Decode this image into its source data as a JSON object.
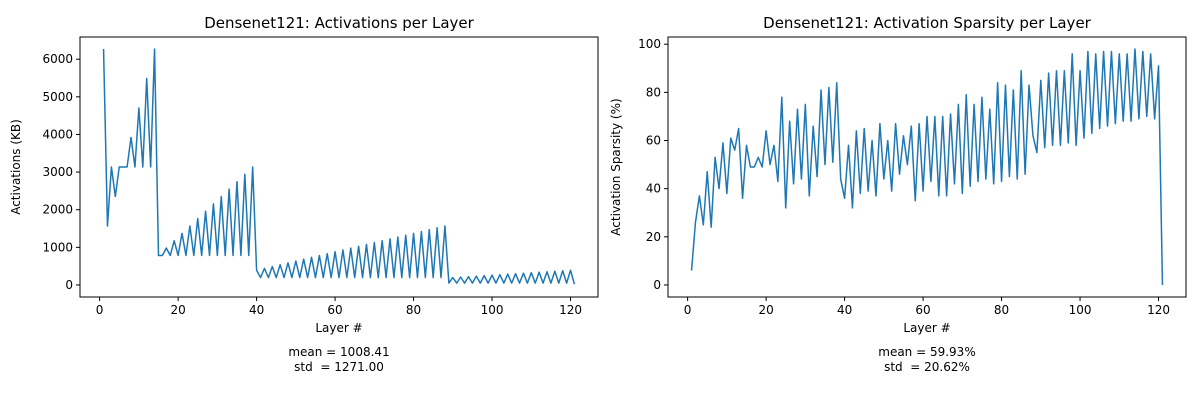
{
  "chart_data": [
    {
      "type": "line",
      "title": "Densenet121: Activations per Layer",
      "xlabel": "Layer #",
      "ylabel": "Activations (KB)",
      "x": [
        1,
        2,
        3,
        4,
        5,
        6,
        7,
        8,
        9,
        10,
        11,
        12,
        13,
        14,
        15,
        16,
        17,
        18,
        19,
        20,
        21,
        22,
        23,
        24,
        25,
        26,
        27,
        28,
        29,
        30,
        31,
        32,
        33,
        34,
        35,
        36,
        37,
        38,
        39,
        40,
        41,
        42,
        43,
        44,
        45,
        46,
        47,
        48,
        49,
        50,
        51,
        52,
        53,
        54,
        55,
        56,
        57,
        58,
        59,
        60,
        61,
        62,
        63,
        64,
        65,
        66,
        67,
        68,
        69,
        70,
        71,
        72,
        73,
        74,
        75,
        76,
        77,
        78,
        79,
        80,
        81,
        82,
        83,
        84,
        85,
        86,
        87,
        88,
        89,
        90,
        91,
        92,
        93,
        94,
        95,
        96,
        97,
        98,
        99,
        100,
        101,
        102,
        103,
        104,
        105,
        106,
        107,
        108,
        109,
        110,
        111,
        112,
        113,
        114,
        115,
        116,
        117,
        118,
        119,
        120,
        121
      ],
      "series": [
        {
          "color": "#1f77b4",
          "values": [
            6272,
            1568,
            3136,
            2352,
            3136,
            3136,
            3136,
            3920,
            3136,
            4704,
            3136,
            5488,
            3136,
            6272,
            784,
            784,
            980,
            784,
            1176,
            784,
            1372,
            784,
            1568,
            784,
            1764,
            784,
            1960,
            784,
            2156,
            784,
            2352,
            784,
            2548,
            784,
            2744,
            784,
            2940,
            784,
            3136,
            392,
            196,
            441,
            196,
            490,
            196,
            539,
            196,
            588,
            196,
            637,
            196,
            686,
            196,
            735,
            196,
            784,
            196,
            833,
            196,
            882,
            196,
            931,
            196,
            980,
            196,
            1029,
            196,
            1078,
            196,
            1127,
            196,
            1176,
            196,
            1225,
            196,
            1274,
            196,
            1323,
            196,
            1372,
            196,
            1421,
            196,
            1470,
            196,
            1519,
            196,
            1568,
            49,
            196,
            49,
            209,
            49,
            222,
            49,
            235,
            49,
            248,
            49,
            261,
            49,
            274,
            49,
            287,
            49,
            300,
            49,
            313,
            49,
            326,
            49,
            339,
            49,
            352,
            49,
            365,
            49,
            378,
            49,
            391,
            20
          ]
        }
      ],
      "xlim": [
        -5,
        127
      ],
      "xticks": [
        0,
        20,
        40,
        60,
        80,
        100,
        120
      ],
      "ylim": [
        -320,
        6590
      ],
      "yticks": [
        0,
        1000,
        2000,
        3000,
        4000,
        5000,
        6000
      ],
      "annotation": [
        "mean = 1008.41",
        "std  = 1271.00"
      ]
    },
    {
      "type": "line",
      "title": "Densenet121: Activation Sparsity per Layer",
      "xlabel": "Layer #",
      "ylabel": "Activation Sparsity (%)",
      "x": [
        1,
        2,
        3,
        4,
        5,
        6,
        7,
        8,
        9,
        10,
        11,
        12,
        13,
        14,
        15,
        16,
        17,
        18,
        19,
        20,
        21,
        22,
        23,
        24,
        25,
        26,
        27,
        28,
        29,
        30,
        31,
        32,
        33,
        34,
        35,
        36,
        37,
        38,
        39,
        40,
        41,
        42,
        43,
        44,
        45,
        46,
        47,
        48,
        49,
        50,
        51,
        52,
        53,
        54,
        55,
        56,
        57,
        58,
        59,
        60,
        61,
        62,
        63,
        64,
        65,
        66,
        67,
        68,
        69,
        70,
        71,
        72,
        73,
        74,
        75,
        76,
        77,
        78,
        79,
        80,
        81,
        82,
        83,
        84,
        85,
        86,
        87,
        88,
        89,
        90,
        91,
        92,
        93,
        94,
        95,
        96,
        97,
        98,
        99,
        100,
        101,
        102,
        103,
        104,
        105,
        106,
        107,
        108,
        109,
        110,
        111,
        112,
        113,
        114,
        115,
        116,
        117,
        118,
        119,
        120,
        121
      ],
      "series": [
        {
          "color": "#1f77b4",
          "values": [
            6,
            26,
            37,
            25,
            47,
            24,
            53,
            40,
            59,
            38,
            61,
            56,
            65,
            36,
            58,
            49,
            49,
            53,
            49,
            64,
            50,
            58,
            43,
            78,
            32,
            68,
            42,
            73,
            44,
            75,
            37,
            66,
            45,
            81,
            50,
            82,
            51,
            84,
            44,
            36,
            58,
            32,
            64,
            38,
            65,
            39,
            60,
            37,
            67,
            44,
            60,
            39,
            67,
            46,
            62,
            50,
            66,
            35,
            67,
            39,
            70,
            43,
            70,
            37,
            70,
            37,
            71,
            42,
            75,
            38,
            79,
            41,
            75,
            43,
            78,
            44,
            73,
            42,
            84,
            43,
            83,
            45,
            81,
            44,
            89,
            46,
            83,
            62,
            55,
            85,
            57,
            88,
            58,
            89,
            58,
            89,
            59,
            96,
            58,
            89,
            61,
            97,
            63,
            96,
            65,
            97,
            66,
            97,
            67,
            96,
            68,
            96,
            68,
            98,
            69,
            97,
            70,
            96,
            69,
            91,
            0
          ]
        }
      ],
      "xlim": [
        -5,
        127
      ],
      "xticks": [
        0,
        20,
        40,
        60,
        80,
        100,
        120
      ],
      "ylim": [
        -5,
        103
      ],
      "yticks": [
        0,
        20,
        40,
        60,
        80,
        100
      ],
      "annotation": [
        "mean = 59.93%",
        "std  = 20.62%"
      ]
    }
  ]
}
